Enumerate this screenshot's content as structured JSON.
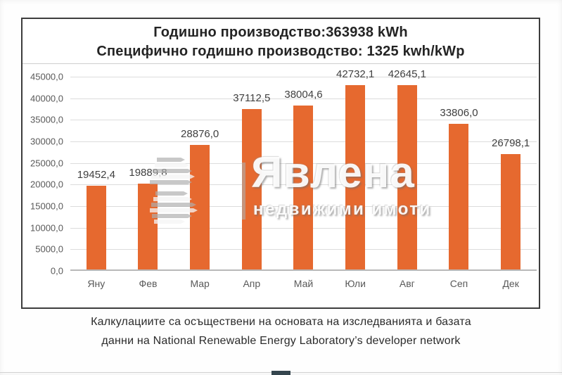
{
  "chart": {
    "title_line1": "Годишно производство:363938 kWh",
    "title_line2": "Специфично годишно производство: 1325 kwh/kWp"
  },
  "chart_data": {
    "type": "bar",
    "title": "Годишно производство:363938 kWh",
    "subtitle": "Специфично годишно производство: 1325 kwh/kWp",
    "annual_production_kwh": 363938,
    "specific_annual_production_kwh_per_kwp": 1325,
    "categories": [
      "Яну",
      "Фев",
      "Мар",
      "Апр",
      "Май",
      "Юли",
      "Авг",
      "Сеп",
      "Дек"
    ],
    "values": [
      19452.4,
      19889.8,
      28876.0,
      37112.5,
      38004.6,
      42732.1,
      42645.1,
      33806.0,
      26798.1
    ],
    "value_labels": [
      "19452,4",
      "19889,8",
      "28876,0",
      "37112,5",
      "38004,6",
      "42732,1",
      "42645,1",
      "33806,0",
      "26798,1"
    ],
    "y_tick_labels": [
      "45000,0",
      "40000,0",
      "35000,0",
      "30000,0",
      "25000,0",
      "20000,0",
      "15000,0",
      "10000,0",
      "5000,0",
      "0,0"
    ],
    "ylim": [
      0,
      45000
    ],
    "y_step": 5000,
    "grid": true,
    "legend_position": "none",
    "bar_color": "#E6692F"
  },
  "watermark": {
    "name": "Явлена",
    "tagline": "недвижими имоти",
    "logo_icon": "yavlena-slats-logo"
  },
  "footer": {
    "line1": "Калкулациите са осъществени на основата на изследванията и базата",
    "line2": "данни на National Renewable Energy Laboratory’s developer network"
  },
  "colors": {
    "bar": "#E6692F",
    "grid": "#DCDCDC",
    "axis": "#B8B8B8",
    "frame_border": "#3D3D3D",
    "title_text": "#242424",
    "value_label_text": "#3F3F3F",
    "tick_text": "#595959",
    "footer_text": "#2B2B2B"
  }
}
